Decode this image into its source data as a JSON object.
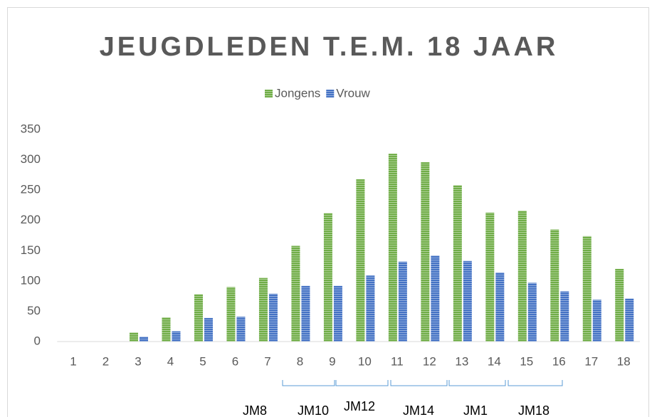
{
  "chart_data": {
    "type": "bar",
    "title": "JEUGDLEDEN T.E.M. 18 JAAR",
    "categories": [
      "1",
      "2",
      "3",
      "4",
      "5",
      "6",
      "7",
      "8",
      "9",
      "10",
      "11",
      "12",
      "13",
      "14",
      "15",
      "16",
      "17",
      "18"
    ],
    "series": [
      {
        "name": "Jongens",
        "color": "#70ad47",
        "values": [
          0,
          0,
          15,
          40,
          78,
          90,
          105,
          158,
          212,
          268,
          310,
          296,
          258,
          213,
          216,
          185,
          174,
          120
        ]
      },
      {
        "name": "Vrouw",
        "color": "#4472c4",
        "values": [
          0,
          0,
          8,
          17,
          39,
          41,
          79,
          92,
          92,
          109,
          132,
          142,
          133,
          114,
          97,
          83,
          69,
          71
        ]
      }
    ],
    "ylim": [
      0,
      350
    ],
    "yticks": [
      0,
      50,
      100,
      150,
      200,
      250,
      300,
      350
    ],
    "grid": false,
    "legend": "top",
    "annotations": [
      "JM8",
      "JM10",
      "JM12",
      "JM14",
      "JM1",
      "JM18"
    ]
  }
}
